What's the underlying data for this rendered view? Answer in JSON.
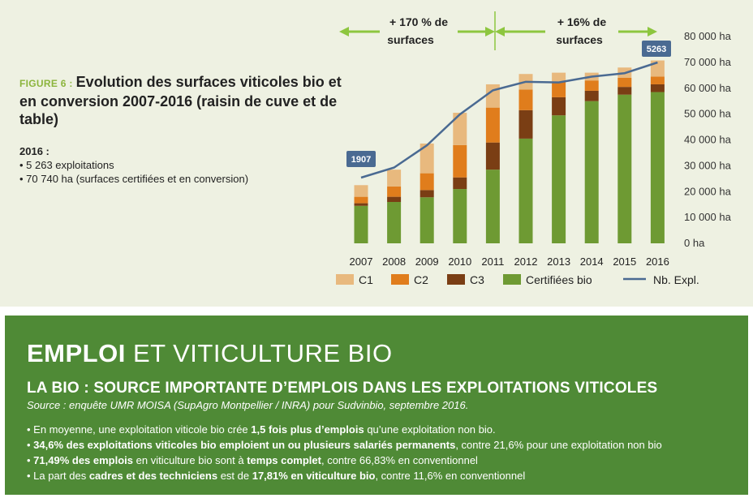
{
  "figure": {
    "label": "FIGURE 6 :",
    "title": "Evolution des surfaces viticoles bio et en conversion 2007-2016 (raisin de cuve et de table)",
    "summary_year": "2016 :",
    "summary_lines": [
      "• 5 263 exploitations",
      "• 70 740 ha (surfaces certifiées et en conversion)"
    ]
  },
  "growth_labels": [
    {
      "line1": "+ 170 % de",
      "line2": "surfaces"
    },
    {
      "line1": "+ 16% de",
      "line2": "surfaces"
    }
  ],
  "colors": {
    "c1": "#e8b97e",
    "c2": "#e07d1c",
    "c3": "#7a3e14",
    "certified": "#6e9a33",
    "line": "#4a6a92",
    "arrow": "#8dc63f",
    "section_bg": "#4f8a36",
    "panel_bg": "#eef1e2"
  },
  "chart_data": {
    "type": "bar",
    "stacked": true,
    "categories": [
      "2007",
      "2008",
      "2009",
      "2010",
      "2011",
      "2012",
      "2013",
      "2014",
      "2015",
      "2016"
    ],
    "series": [
      {
        "name": "Certifiées bio",
        "values": [
          14500,
          16000,
          17800,
          21000,
          28500,
          40500,
          49500,
          55000,
          57500,
          58500
        ]
      },
      {
        "name": "C3",
        "values": [
          1000,
          2000,
          2800,
          4500,
          10500,
          11000,
          7000,
          4000,
          3000,
          3000
        ]
      },
      {
        "name": "C2",
        "values": [
          2500,
          4000,
          6500,
          12500,
          13500,
          8000,
          6000,
          4000,
          3500,
          3000
        ]
      },
      {
        "name": "C1",
        "values": [
          4500,
          6500,
          11500,
          12500,
          9000,
          6000,
          3500,
          3000,
          4000,
          6240
        ]
      }
    ],
    "line": {
      "name": "Nb. Expl.",
      "values": [
        1907,
        2200,
        2850,
        3750,
        4450,
        4700,
        4680,
        4850,
        4950,
        5263
      ]
    },
    "point_labels": [
      "1907",
      "5263"
    ],
    "y_ticks": [
      "0 ha",
      "10 000 ha",
      "20 000 ha",
      "30 000 ha",
      "40 000 ha",
      "50 000 ha",
      "60 000 ha",
      "70 000 ha",
      "80 000 ha"
    ],
    "ylim": [
      0,
      80000
    ],
    "legend": [
      "C1",
      "C2",
      "C3",
      "Certifiées bio",
      "Nb. Expl."
    ],
    "legend_position": "bottom"
  },
  "section": {
    "title_bold": "EMPLOI",
    "title_rest": " ET VITICULTURE BIO",
    "subtitle": "LA BIO : SOURCE IMPORTANTE D’EMPLOIS DANS LES EXPLOITATIONS VITICOLES",
    "source": "Source : enquête UMR MOISA (SupAgro Montpellier / INRA) pour Sudvinbio, septembre 2016.",
    "bullets": [
      {
        "a": "• En moyenne, une exploitation viticole bio crée ",
        "b": "1,5 fois plus d’emplois",
        "c": " qu’une exploitation non bio."
      },
      {
        "a": "• ",
        "b": "34,6% des exploitations viticoles bio emploient un ou plusieurs salariés permanents",
        "c": ", contre 21,6% pour une exploitation non bio"
      },
      {
        "a": "• ",
        "b": "71,49% des emplois",
        "c": " en viticulture bio sont à ",
        "d": "temps complet",
        "e": ", contre 66,83% en conventionnel"
      },
      {
        "a": "• La part des ",
        "b": "cadres et des techniciens",
        "c": " est de ",
        "d": "17,81% en viticulture bio",
        "e": ", contre 11,6% en conventionnel"
      }
    ]
  }
}
